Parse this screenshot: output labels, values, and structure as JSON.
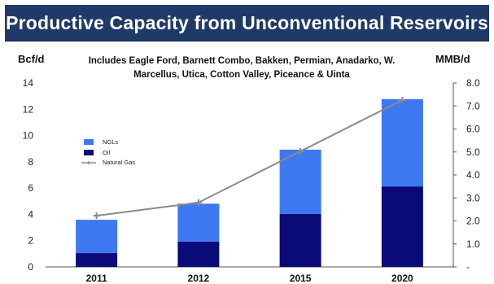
{
  "header": {
    "title": "Productive Capacity from Unconventional Reservoirs"
  },
  "chart_data": {
    "type": "bar",
    "stacked": true,
    "subtitle_line1": "Includes Eagle Ford, Barnett Combo, Bakken, Permian, Anadarko, W.",
    "subtitle_line2": "Marcellus, Utica, Cotton Valley, Piceance & Uinta",
    "ylabel_left": "Bcf/d",
    "ylabel_right": "MMB/d",
    "categories": [
      "2011",
      "2012",
      "2015",
      "2020"
    ],
    "ylim_left": [
      0,
      14
    ],
    "ylim_right": [
      0,
      8
    ],
    "yticks_left": [
      "0",
      "2",
      "4",
      "6",
      "8",
      "10",
      "12",
      "14"
    ],
    "yticks_right": [
      "-",
      "1.0",
      "2.0",
      "3.0",
      "4.0",
      "5.0",
      "6.0",
      "7.0",
      "8.0"
    ],
    "series": [
      {
        "name": "Oil",
        "axis": "right",
        "type": "bar",
        "color": "#0a0a78",
        "values": [
          0.6,
          1.1,
          2.3,
          3.5
        ]
      },
      {
        "name": "NGLs",
        "axis": "right",
        "type": "bar",
        "color": "#3d78f0",
        "values": [
          1.45,
          1.65,
          2.8,
          3.8
        ]
      },
      {
        "name": "Natural Gas",
        "axis": "left",
        "type": "line",
        "color": "#8a8a8a",
        "values": [
          3.9,
          4.9,
          8.8,
          12.7
        ]
      }
    ],
    "legend_position": "upper-left",
    "grid": false
  }
}
